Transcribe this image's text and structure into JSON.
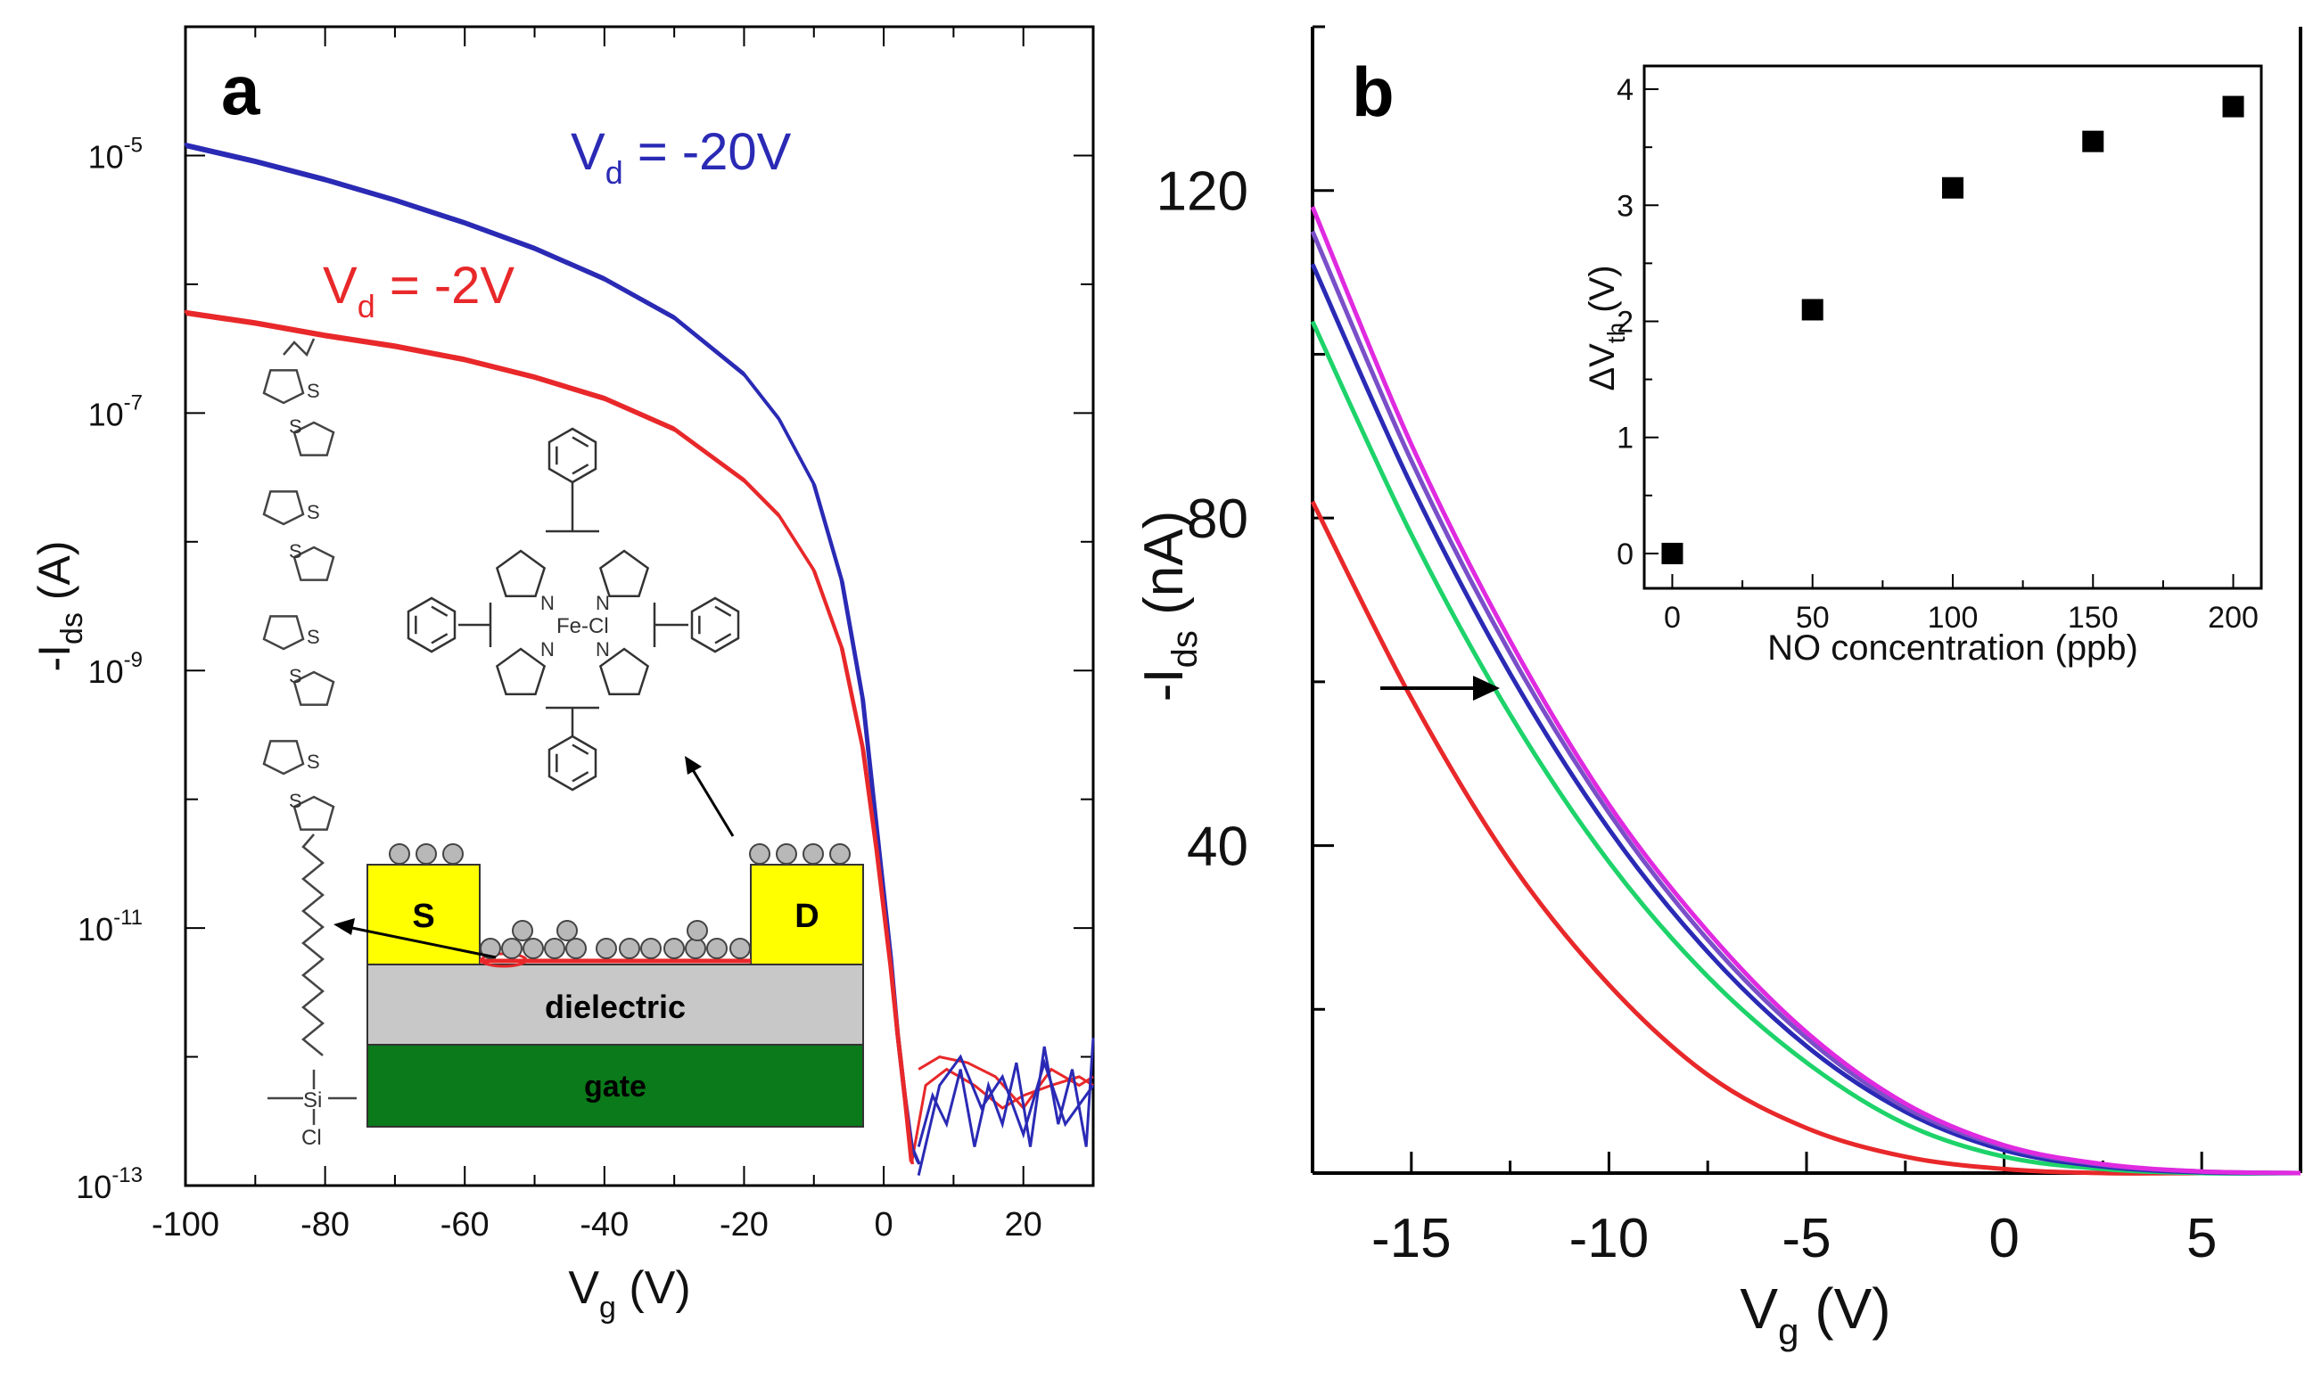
{
  "colors": {
    "blue": "#2a2ab5",
    "red": "#e8282a",
    "green": "#1ed36a",
    "purple": "#7a4fc8",
    "magenta": "#e02ae0",
    "yellow": "#ffff00",
    "gray": "#c8c8c8",
    "gate_green": "#0a7a1a"
  },
  "chart_data": [
    {
      "panel_label": "a",
      "type": "line",
      "xlabel": "Vg (V)",
      "ylabel": "-Ids (A)",
      "xlim": [
        -100,
        30
      ],
      "ylim": [
        1e-13,
        0.0001
      ],
      "yscale": "log",
      "xticks": [
        -100,
        -80,
        -60,
        -40,
        -20,
        0,
        20
      ],
      "yticks_exponents": [
        -13,
        -11,
        -9,
        -7,
        -5
      ],
      "series": [
        {
          "name": "Vd = -20V",
          "color": "blue",
          "x": [
            -100,
            -90,
            -80,
            -70,
            -60,
            -50,
            -40,
            -30,
            -20,
            -15,
            -10,
            -6,
            -3,
            -1,
            1,
            2,
            3,
            4,
            5
          ],
          "y": [
            1.2e-05,
            9e-06,
            6.5e-06,
            4.5e-06,
            3e-06,
            1.9e-06,
            1.1e-06,
            5.5e-07,
            2e-07,
            9e-08,
            2.8e-08,
            5e-09,
            6e-10,
            6e-11,
            6e-12,
            1.5e-12,
            5e-13,
            2e-13,
            1.5e-13
          ]
        },
        {
          "name": "Vd = -2V",
          "color": "red",
          "x": [
            -100,
            -90,
            -80,
            -70,
            -60,
            -50,
            -40,
            -30,
            -20,
            -15,
            -10,
            -6,
            -3,
            -1,
            1,
            2,
            3,
            4
          ],
          "y": [
            6e-07,
            5e-07,
            4e-07,
            3.3e-07,
            2.6e-07,
            1.9e-07,
            1.3e-07,
            7.5e-08,
            3e-08,
            1.6e-08,
            6e-09,
            1.5e-09,
            2.5e-10,
            4e-11,
            5e-12,
            1.5e-12,
            5e-13,
            1.5e-13
          ]
        }
      ],
      "annotations": [
        {
          "text_main": "V",
          "text_sub": "d",
          "text_rest": " = -20V",
          "color": "blue"
        },
        {
          "text_main": "V",
          "text_sub": "d",
          "text_rest": " = -2V",
          "color": "red"
        }
      ],
      "schematic": {
        "source_label": "S",
        "drain_label": "D",
        "dielectric_label": "dielectric",
        "gate_label": "gate"
      },
      "molecule_labels": {
        "thiophene_s": "S",
        "porphyrin_n": "N",
        "porphyrin_center": "Fe-Cl",
        "anchor_si": "Si",
        "anchor_cl": "Cl"
      }
    },
    {
      "panel_label": "b",
      "type": "line",
      "xlabel": "Vg (V)",
      "ylabel": "-Ids (nA)",
      "xlim": [
        -17.5,
        7.5
      ],
      "ylim": [
        0,
        140
      ],
      "xticks": [
        -15,
        -10,
        -5,
        0,
        5
      ],
      "yticks": [
        40,
        80,
        120
      ],
      "series": [
        {
          "color": "red",
          "x": [
            -17.5,
            -15,
            -12.5,
            -10,
            -7.5,
            -5,
            -2.5,
            0,
            2.5,
            5,
            7.5
          ],
          "y": [
            82,
            58,
            38,
            23,
            12,
            5.5,
            2,
            0.5,
            0,
            0,
            0
          ]
        },
        {
          "color": "green",
          "x": [
            -17.5,
            -15,
            -12.5,
            -10,
            -7.5,
            -5,
            -2.5,
            0,
            2.5,
            5,
            7.5
          ],
          "y": [
            104,
            78,
            56,
            38,
            24,
            13.5,
            6,
            2,
            0.5,
            0,
            0
          ]
        },
        {
          "color": "blue",
          "x": [
            -17.5,
            -15,
            -12.5,
            -10,
            -7.5,
            -5,
            -2.5,
            0,
            2.5,
            5,
            7.5
          ],
          "y": [
            111,
            84,
            61,
            42,
            27,
            15.5,
            7.5,
            2.8,
            0.8,
            0.1,
            0
          ]
        },
        {
          "color": "purple",
          "x": [
            -17.5,
            -15,
            -12.5,
            -10,
            -7.5,
            -5,
            -2.5,
            0,
            2.5,
            5,
            7.5
          ],
          "y": [
            115,
            87,
            63.5,
            44,
            28.5,
            16.5,
            8,
            3.2,
            1,
            0.2,
            0
          ]
        },
        {
          "color": "magenta",
          "x": [
            -17.5,
            -15,
            -12.5,
            -10,
            -7.5,
            -5,
            -2.5,
            0,
            2.5,
            5,
            7.5
          ],
          "y": [
            118,
            89,
            65,
            45,
            29.5,
            17.2,
            8.5,
            3.4,
            1.1,
            0.2,
            0
          ]
        }
      ],
      "inset": {
        "type": "scatter",
        "xlabel": "NO concentration (ppb)",
        "ylabel": "ΔVth (V)",
        "xlim": [
          -10,
          210
        ],
        "ylim": [
          -0.3,
          4.2
        ],
        "xticks": [
          0,
          50,
          100,
          150,
          200
        ],
        "yticks": [
          0,
          1,
          2,
          3,
          4
        ],
        "x": [
          0,
          50,
          100,
          150,
          200
        ],
        "y": [
          0,
          2.1,
          3.15,
          3.55,
          3.85
        ]
      }
    }
  ]
}
